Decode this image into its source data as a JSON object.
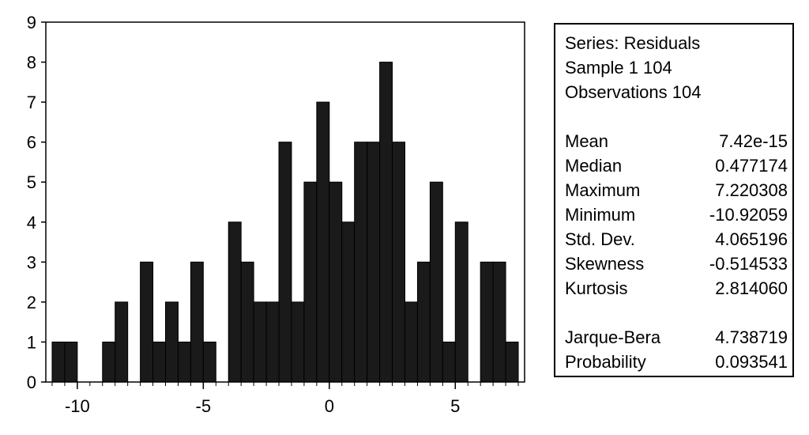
{
  "chart_data": {
    "type": "bar",
    "title": "",
    "xlabel": "",
    "ylabel": "",
    "bin_width": 0.5,
    "bin_starts": [
      -11,
      -10.5,
      -10,
      -9.5,
      -9,
      -8.5,
      -8,
      -7.5,
      -7,
      -6.5,
      -6,
      -5.5,
      -5,
      -4.5,
      -4,
      -3.5,
      -3,
      -2.5,
      -2,
      -1.5,
      -1,
      -0.5,
      0,
      0.5,
      1,
      1.5,
      2,
      2.5,
      3,
      3.5,
      4,
      4.5,
      5,
      5.5,
      6,
      6.5,
      7
    ],
    "values": [
      1,
      1,
      0,
      0,
      1,
      2,
      0,
      3,
      1,
      2,
      1,
      3,
      1,
      0,
      4,
      3,
      2,
      2,
      6,
      2,
      5,
      7,
      5,
      4,
      6,
      6,
      8,
      6,
      2,
      3,
      5,
      1,
      4,
      0,
      3,
      3,
      1
    ],
    "xlim": [
      -11,
      7.5
    ],
    "ylim": [
      0,
      9
    ],
    "x_ticks": [
      -10,
      -5,
      0,
      5
    ],
    "y_ticks": [
      0,
      1,
      2,
      3,
      4,
      5,
      6,
      7,
      8,
      9
    ],
    "bar_color": "#1a1a1a",
    "grid": false
  },
  "stats": {
    "series": "Series: Residuals",
    "sample": "Sample 1 104",
    "observations": "Observations 104",
    "rows": [
      {
        "label": "Mean",
        "value": "7.42e-15"
      },
      {
        "label": "Median",
        "value": "0.477174"
      },
      {
        "label": "Maximum",
        "value": "7.220308"
      },
      {
        "label": "Minimum",
        "value": "-10.92059"
      },
      {
        "label": "Std. Dev.",
        "value": "4.065196"
      },
      {
        "label": "Skewness",
        "value": "-0.514533"
      },
      {
        "label": "Kurtosis",
        "value": "2.814060"
      }
    ],
    "test_rows": [
      {
        "label": "Jarque-Bera",
        "value": "4.738719"
      },
      {
        "label": "Probability",
        "value": "0.093541"
      }
    ]
  }
}
